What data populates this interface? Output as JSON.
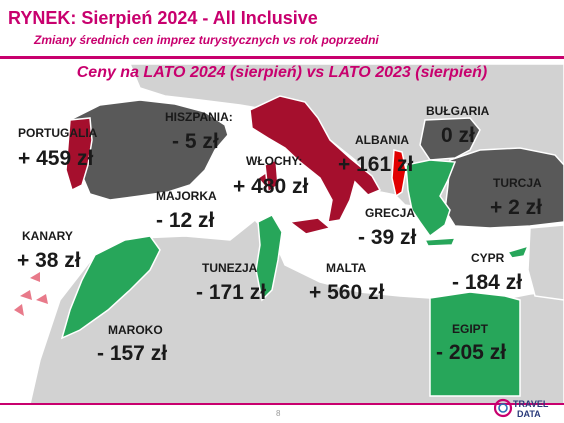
{
  "header": {
    "title": "RYNEK: Sierpień 2024 - All Inclusive",
    "subtitle": "Zmiany średnich cen imprez turystycznych vs rok poprzedni"
  },
  "banner": "Ceny na LATO 2024 (sierpień) vs  LATO 2023 (sierpień)",
  "colors": {
    "brand": "#c8006e",
    "increase": "#a50f2d",
    "decrease": "#27a65a",
    "unchanged": "#595959",
    "land": "#d2d2d2",
    "sea": "#ffffff"
  },
  "destinations": [
    {
      "id": "portugalia",
      "country": "PORTUGALIA",
      "change": "+ 459 zł",
      "trend": "increase"
    },
    {
      "id": "hiszpania",
      "country": "HISZPANIA:",
      "change": "- 5 zł",
      "trend": "unchanged"
    },
    {
      "id": "wlochy",
      "country": "WŁOCHY:",
      "change": "+ 480 zł",
      "trend": "increase"
    },
    {
      "id": "albania",
      "country": "ALBANIA",
      "change": "+ 161 zł",
      "trend": "increase"
    },
    {
      "id": "bulgaria",
      "country": "BUŁGARIA",
      "change": "0 zł",
      "trend": "unchanged"
    },
    {
      "id": "turcja",
      "country": "TURCJA",
      "change": "+ 2 zł",
      "trend": "unchanged"
    },
    {
      "id": "majorka",
      "country": "MAJORKA",
      "change": "- 12 zł",
      "trend": "decrease"
    },
    {
      "id": "grecja",
      "country": "GRECJA",
      "change": "- 39 zł",
      "trend": "decrease"
    },
    {
      "id": "kanary",
      "country": "KANARY",
      "change": "+ 38 zł",
      "trend": "increase"
    },
    {
      "id": "tunezja",
      "country": "TUNEZJA",
      "change": "- 171 zł",
      "trend": "decrease"
    },
    {
      "id": "malta",
      "country": "MALTA",
      "change": "+ 560 zł",
      "trend": "increase"
    },
    {
      "id": "cypr",
      "country": "CYPR",
      "change": "- 184 zł",
      "trend": "decrease"
    },
    {
      "id": "maroko",
      "country": "MAROKO",
      "change": "- 157 zł",
      "trend": "decrease"
    },
    {
      "id": "egipt",
      "country": "EGIPT",
      "change": "- 205 zł",
      "trend": "decrease"
    }
  ],
  "footer": {
    "page_number": "8",
    "logo_text_top": "TRAVEL",
    "logo_text_bottom": "DATA"
  }
}
